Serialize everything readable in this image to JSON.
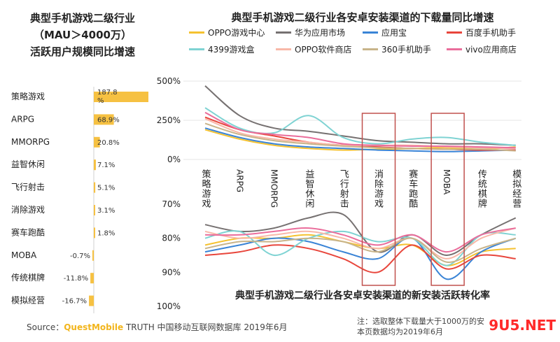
{
  "left_title": [
    "典型手机游戏二级行业",
    "（MAU＞4000万）",
    "活跃用户规模同比增速"
  ],
  "right_title": "典型手机游戏二级行业各安卓安装渠道的下载量同比增速",
  "bottom_title": "典型手机游戏二级行业各安卓安装渠道的新安装活跃转化率",
  "source": {
    "prefix": "Source：",
    "brand": "QuestMobile",
    "suffix": " TRUTH 中国移动互联网数据库 2019年6月"
  },
  "note": [
    "注：选取整体下载量大于1000万的安",
    "本页数据均为2019年6月"
  ],
  "watermark": {
    "a": "9U5",
    "b": ".NET"
  },
  "colors": {
    "bar": "#f6c142",
    "highlight_box": "#c0504d"
  },
  "chart_data": [
    {
      "type": "bar",
      "orientation": "horizontal",
      "categories": [
        "策略游戏",
        "ARPG",
        "MMORPG",
        "益智休闲",
        "飞行射击",
        "消除游戏",
        "赛车跑酷",
        "MOBA",
        "传统棋牌",
        "模拟经营"
      ],
      "values": [
        187.8,
        68.9,
        20.8,
        7.1,
        5.1,
        3.1,
        1.8,
        -0.7,
        -11.8,
        -16.7
      ],
      "labels": [
        "187.8%",
        "68.9%",
        "20.8%",
        "7.1%",
        "5.1%",
        "3.1%",
        "1.8%",
        "-0.7%",
        "-11.8%",
        "-16.7%"
      ]
    },
    {
      "type": "line",
      "categories": [
        "策略游戏",
        "ARPG",
        "MMORPG",
        "益智休闲",
        "飞行射击",
        "消除游戏",
        "赛车跑酷",
        "MOBA",
        "传统棋牌",
        "模拟经营"
      ],
      "yticks": [
        "500%",
        "250%",
        "0%"
      ],
      "ylim": [
        0,
        500
      ],
      "highlight": [
        "消除游戏",
        "MOBA"
      ],
      "series": [
        {
          "name": "OPPO游戏中心",
          "color": "#f5c230",
          "values": [
            190,
            130,
            90,
            70,
            60,
            65,
            70,
            75,
            65,
            80
          ]
        },
        {
          "name": "华为应用市场",
          "color": "#767171",
          "values": [
            470,
            280,
            200,
            180,
            150,
            120,
            110,
            100,
            100,
            90
          ]
        },
        {
          "name": "应用宝",
          "color": "#3a84d6",
          "values": [
            200,
            140,
            100,
            80,
            70,
            60,
            55,
            50,
            55,
            60
          ]
        },
        {
          "name": "百度手机助手",
          "color": "#e8463c",
          "values": [
            270,
            190,
            150,
            110,
            90,
            80,
            70,
            65,
            60,
            60
          ]
        },
        {
          "name": "4399游戏盒",
          "color": "#7fd3d3",
          "values": [
            330,
            200,
            170,
            280,
            140,
            100,
            130,
            140,
            110,
            90
          ]
        },
        {
          "name": "OPPO软件商店",
          "color": "#f8b8a8",
          "values": [
            260,
            170,
            130,
            110,
            90,
            90,
            90,
            80,
            75,
            70
          ]
        },
        {
          "name": "360手机助手",
          "color": "#c8b48a",
          "values": [
            230,
            160,
            120,
            100,
            85,
            75,
            70,
            65,
            65,
            55
          ]
        },
        {
          "name": "vivo应用商店",
          "color": "#ea6d9b",
          "values": [
            300,
            190,
            160,
            140,
            100,
            90,
            85,
            85,
            80,
            75
          ]
        }
      ]
    },
    {
      "type": "line",
      "categories": [
        "策略游戏",
        "ARPG",
        "MMORPG",
        "益智休闲",
        "飞行射击",
        "消除游戏",
        "赛车跑酷",
        "MOBA",
        "传统棋牌",
        "模拟经营"
      ],
      "yticks": [
        "70%",
        "80%",
        "90%",
        "100%"
      ],
      "ylim": [
        70,
        100
      ],
      "inverted": true,
      "series": [
        {
          "name": "OPPO游戏中心",
          "values": [
            82,
            80,
            80,
            79,
            81,
            83,
            82,
            88,
            84,
            83
          ]
        },
        {
          "name": "华为应用市场",
          "values": [
            76,
            78,
            77,
            74,
            73,
            84,
            79,
            85,
            79,
            74
          ]
        },
        {
          "name": "应用宝",
          "values": [
            84,
            82,
            80,
            81,
            84,
            86,
            80,
            92,
            84,
            80
          ]
        },
        {
          "name": "百度手机助手",
          "values": [
            85,
            84,
            82,
            83,
            86,
            90,
            82,
            89,
            85,
            86
          ]
        },
        {
          "name": "4399游戏盒",
          "values": [
            80,
            78,
            85,
            80,
            78,
            81,
            80,
            88,
            79,
            79
          ]
        },
        {
          "name": "OPPO软件商店",
          "values": [
            78,
            80,
            79,
            78,
            80,
            83,
            80,
            86,
            80,
            77
          ]
        },
        {
          "name": "360手机助手",
          "values": [
            83,
            81,
            81,
            80,
            81,
            84,
            80,
            87,
            83,
            80
          ]
        },
        {
          "name": "vivo应用商店",
          "values": [
            79,
            79,
            78,
            77,
            79,
            82,
            79,
            84,
            79,
            77
          ]
        }
      ]
    }
  ]
}
